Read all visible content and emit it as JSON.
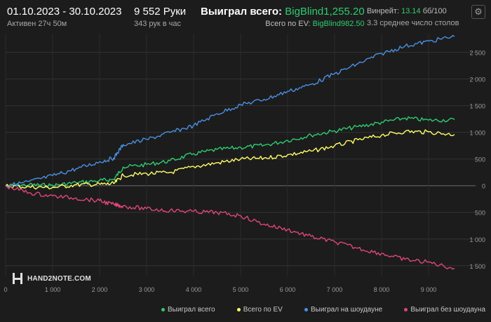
{
  "header": {
    "date_range": "01.10.2023 - 30.10.2023",
    "active_time": "Активен 27ч 50м",
    "hands": "9 552 Руки",
    "hands_per_hour": "343 рук в час",
    "won_total_label": "Выиграл всего:",
    "won_total_value": "BigBlind1,255.20",
    "ev_label": "Всего по EV:",
    "ev_value": "BigBlind982.50",
    "winrate_label": "Винрейт:",
    "winrate_value": "13.14",
    "winrate_suffix": "бб/100",
    "avg_tables": "3.3 среднее число столов"
  },
  "settings_icon": "gear-icon",
  "logo_text": "HAND2NOTE.COM",
  "colors": {
    "background": "#1c1c1c",
    "accent_green": "#2ecc71",
    "won_total": "#2ecc71",
    "ev": "#ffff66",
    "showdown": "#4a90e2",
    "no_showdown": "#e0457b"
  },
  "chart_data": {
    "type": "line",
    "x_ticks": [
      "0",
      "1 000",
      "2 000",
      "3 000",
      "4 000",
      "5 000",
      "6 000",
      "7 000",
      "8 000",
      "9 000"
    ],
    "y_ticks_positive": [
      "500",
      "1 000",
      "1 500",
      "2 000",
      "2 500"
    ],
    "y_ticks_zero": "0",
    "y_ticks_negative": [
      "500",
      "1 000",
      "1 500"
    ],
    "xlim": [
      0,
      9552
    ],
    "ylim": [
      -1700,
      2850
    ],
    "grid": true,
    "legend_position": "bottom-right",
    "series": [
      {
        "name": "Выиграл всего",
        "color": "#2ecc71",
        "x": [
          0,
          500,
          1000,
          1500,
          2000,
          2300,
          2500,
          3000,
          3500,
          4000,
          4500,
          5000,
          5500,
          6000,
          6500,
          7000,
          7500,
          8000,
          8500,
          9000,
          9552
        ],
        "y": [
          0,
          20,
          10,
          60,
          100,
          120,
          350,
          400,
          470,
          600,
          680,
          720,
          760,
          850,
          950,
          1030,
          1110,
          1190,
          1270,
          1230,
          1240
        ]
      },
      {
        "name": "Всего по EV",
        "color": "#ffff66",
        "x": [
          0,
          500,
          1000,
          1500,
          2000,
          2300,
          2500,
          3000,
          3500,
          4000,
          4500,
          5000,
          5500,
          6000,
          6500,
          7000,
          7500,
          8000,
          8500,
          9000,
          9552
        ],
        "y": [
          0,
          -20,
          -30,
          20,
          30,
          40,
          200,
          230,
          250,
          360,
          430,
          500,
          520,
          580,
          650,
          750,
          860,
          950,
          1020,
          1010,
          960
        ]
      },
      {
        "name": "Выиграл на шоудауне",
        "color": "#4a90e2",
        "x": [
          0,
          500,
          1000,
          1500,
          2000,
          2300,
          2500,
          3000,
          3500,
          4000,
          4500,
          5000,
          5500,
          6000,
          6500,
          7000,
          7500,
          8000,
          8500,
          9000,
          9552
        ],
        "y": [
          0,
          80,
          190,
          320,
          450,
          520,
          770,
          870,
          1000,
          1130,
          1350,
          1520,
          1620,
          1770,
          1900,
          2100,
          2290,
          2480,
          2620,
          2710,
          2800
        ]
      },
      {
        "name": "Выиграл без шоудауна",
        "color": "#e0457b",
        "x": [
          0,
          500,
          1000,
          1500,
          2000,
          2300,
          2500,
          3000,
          3500,
          4000,
          4500,
          5000,
          5500,
          6000,
          6500,
          7000,
          7500,
          8000,
          8500,
          9000,
          9552
        ],
        "y": [
          0,
          -130,
          -190,
          -230,
          -280,
          -350,
          -380,
          -430,
          -460,
          -480,
          -500,
          -560,
          -720,
          -820,
          -950,
          -1050,
          -1170,
          -1270,
          -1380,
          -1430,
          -1550
        ]
      }
    ]
  }
}
